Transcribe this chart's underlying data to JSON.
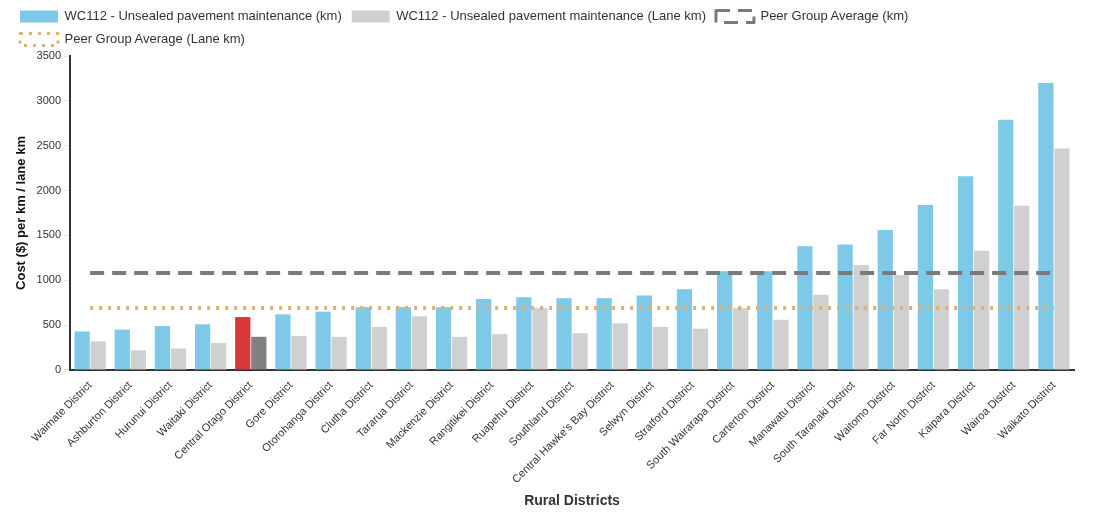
{
  "chart_data": {
    "type": "bar",
    "xlabel": "Rural Districts",
    "ylabel": "Cost ($) per km / lane km",
    "categories": [
      "Waimate District",
      "Ashburton District",
      "Hurunui District",
      "Waitaki District",
      "Central Otago District",
      "Gore District",
      "Otorohanga District",
      "Clutha District",
      "Tararua District",
      "Mackenzie District",
      "Rangitikei District",
      "Ruapehu District",
      "Southland District",
      "Central Hawke's Bay District",
      "Selwyn District",
      "Stratford District",
      "South Wairarapa District",
      "Carterton District",
      "Manawatu District",
      "South Taranaki District",
      "Waitomo District",
      "Far North District",
      "Kaipara District",
      "Wairoa District",
      "Waikato District"
    ],
    "series": [
      {
        "name": "WC112 - Unsealed pavement maintenance (km)",
        "color": "#7ec8e8",
        "colors": [
          "#7ec8e8",
          "#7ec8e8",
          "#7ec8e8",
          "#7ec8e8",
          "#d9383a",
          "#7ec8e8",
          "#7ec8e8",
          "#7ec8e8",
          "#7ec8e8",
          "#7ec8e8",
          "#7ec8e8",
          "#7ec8e8",
          "#7ec8e8",
          "#7ec8e8",
          "#7ec8e8",
          "#7ec8e8",
          "#7ec8e8",
          "#7ec8e8",
          "#7ec8e8",
          "#7ec8e8",
          "#7ec8e8",
          "#7ec8e8",
          "#7ec8e8",
          "#7ec8e8",
          "#7ec8e8"
        ],
        "values": [
          430,
          450,
          490,
          510,
          590,
          620,
          650,
          700,
          700,
          700,
          790,
          810,
          800,
          800,
          830,
          900,
          1100,
          1100,
          1380,
          1400,
          1560,
          1840,
          2160,
          2790,
          3200
        ]
      },
      {
        "name": "WC112 - Unsealed pavement maintenance (Lane km)",
        "color": "#d0d0d0",
        "colors": [
          "#d0d0d0",
          "#d0d0d0",
          "#d0d0d0",
          "#d0d0d0",
          "#808080",
          "#d0d0d0",
          "#d0d0d0",
          "#d0d0d0",
          "#d0d0d0",
          "#d0d0d0",
          "#d0d0d0",
          "#d0d0d0",
          "#d0d0d0",
          "#d0d0d0",
          "#d0d0d0",
          "#d0d0d0",
          "#d0d0d0",
          "#d0d0d0",
          "#d0d0d0",
          "#d0d0d0",
          "#d0d0d0",
          "#d0d0d0",
          "#d0d0d0",
          "#d0d0d0",
          "#d0d0d0"
        ],
        "values": [
          320,
          220,
          240,
          300,
          370,
          380,
          370,
          480,
          600,
          370,
          400,
          690,
          410,
          520,
          480,
          460,
          690,
          560,
          840,
          1170,
          1060,
          900,
          1330,
          1830,
          2470
        ]
      },
      {
        "name": "Peer Group Average (km)",
        "type": "line",
        "line_style": "dashed",
        "marker": "none",
        "color": "#7a7a7a",
        "values": [
          1080,
          1080,
          1080,
          1080,
          1080,
          1080,
          1080,
          1080,
          1080,
          1080,
          1080,
          1080,
          1080,
          1080,
          1080,
          1080,
          1080,
          1080,
          1080,
          1080,
          1080,
          1080,
          1080,
          1080,
          1080
        ]
      },
      {
        "name": "Peer Group Average (Lane km)",
        "type": "line",
        "line_style": "dotted",
        "marker": "none",
        "color": "#e0b070",
        "values": [
          690,
          690,
          690,
          690,
          690,
          690,
          690,
          690,
          690,
          690,
          690,
          690,
          690,
          690,
          690,
          690,
          690,
          690,
          690,
          690,
          690,
          690,
          690,
          690,
          690
        ]
      }
    ],
    "ylim": [
      0,
      3500
    ],
    "yticks": [
      0,
      500,
      1000,
      1500,
      2000,
      2500,
      3000,
      3500
    ],
    "grid": false,
    "legend": "top left"
  }
}
